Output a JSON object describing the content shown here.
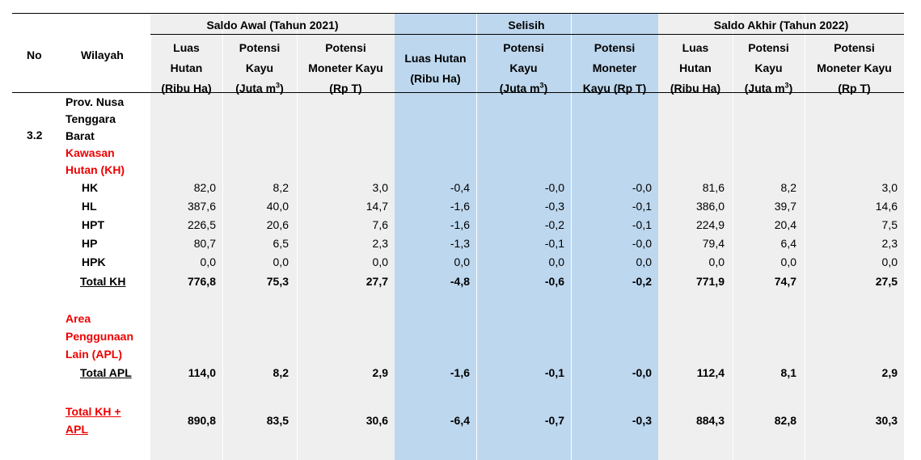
{
  "header": {
    "no": "No",
    "wilayah": "Wilayah",
    "groups": [
      "Saldo Awal (Tahun 2021)",
      "Selisih",
      "Saldo Akhir (Tahun 2022)"
    ],
    "cols": {
      "c1": [
        "Luas",
        "Hutan",
        "(Ribu Ha)"
      ],
      "c2": [
        "Potensi",
        "Kayu",
        "(Juta m",
        "3",
        ")"
      ],
      "c3": [
        "Potensi",
        "Moneter Kayu",
        "(Rp T)"
      ],
      "c4": [
        "Luas Hutan",
        "(Ribu Ha)"
      ],
      "c5": [
        "Potensi",
        "Kayu",
        "(Juta m",
        "3",
        ")"
      ],
      "c6": [
        "Potensi",
        "Moneter",
        "Kayu (Rp T)"
      ],
      "c7": [
        "Luas",
        "Hutan",
        "(Ribu Ha)"
      ],
      "c8": [
        "Potensi",
        "Kayu",
        "(Juta m",
        "3",
        ")"
      ],
      "c9": [
        "Potensi",
        "Moneter Kayu",
        "(Rp T)"
      ]
    }
  },
  "section": {
    "no": "3.2",
    "province": [
      "Prov. Nusa",
      "Tenggara",
      "Barat"
    ],
    "kh_title": [
      "Kawasan",
      "Hutan (KH)"
    ],
    "apl_title": [
      "Area",
      "Penggunaan",
      "Lain (APL)"
    ],
    "grand_title": [
      "Total KH +",
      "APL"
    ]
  },
  "rows": [
    {
      "label": "HK",
      "v": [
        "82,0",
        "8,2",
        "3,0",
        "-0,4",
        "-0,0",
        "-0,0",
        "81,6",
        "8,2",
        "3,0"
      ]
    },
    {
      "label": "HL",
      "v": [
        "387,6",
        "40,0",
        "14,7",
        "-1,6",
        "-0,3",
        "-0,1",
        "386,0",
        "39,7",
        "14,6"
      ]
    },
    {
      "label": "HPT",
      "v": [
        "226,5",
        "20,6",
        "7,6",
        "-1,6",
        "-0,2",
        "-0,1",
        "224,9",
        "20,4",
        "7,5"
      ]
    },
    {
      "label": "HP",
      "v": [
        "80,7",
        "6,5",
        "2,3",
        "-1,3",
        "-0,1",
        "-0,0",
        "79,4",
        "6,4",
        "2,3"
      ]
    },
    {
      "label": "HPK",
      "v": [
        "0,0",
        "0,0",
        "0,0",
        "0,0",
        "0,0",
        "0,0",
        "0,0",
        "0,0",
        "0,0"
      ]
    },
    {
      "label": "Total KH",
      "v": [
        "776,8",
        "75,3",
        "27,7",
        "-4,8",
        "-0,6",
        "-0,2",
        "771,9",
        "74,7",
        "27,5"
      ]
    },
    {
      "label": "Total APL",
      "v": [
        "114,0",
        "8,2",
        "2,9",
        "-1,6",
        "-0,1",
        "-0,0",
        "112,4",
        "8,1",
        "2,9"
      ]
    },
    {
      "label": "",
      "v": [
        "890,8",
        "83,5",
        "30,6",
        "-6,4",
        "-0,7",
        "-0,3",
        "884,3",
        "82,8",
        "30,3"
      ]
    }
  ],
  "colors": {
    "gray_band": "#efefef",
    "blue_band": "#bdd7ee",
    "red_text": "#ee0000"
  }
}
